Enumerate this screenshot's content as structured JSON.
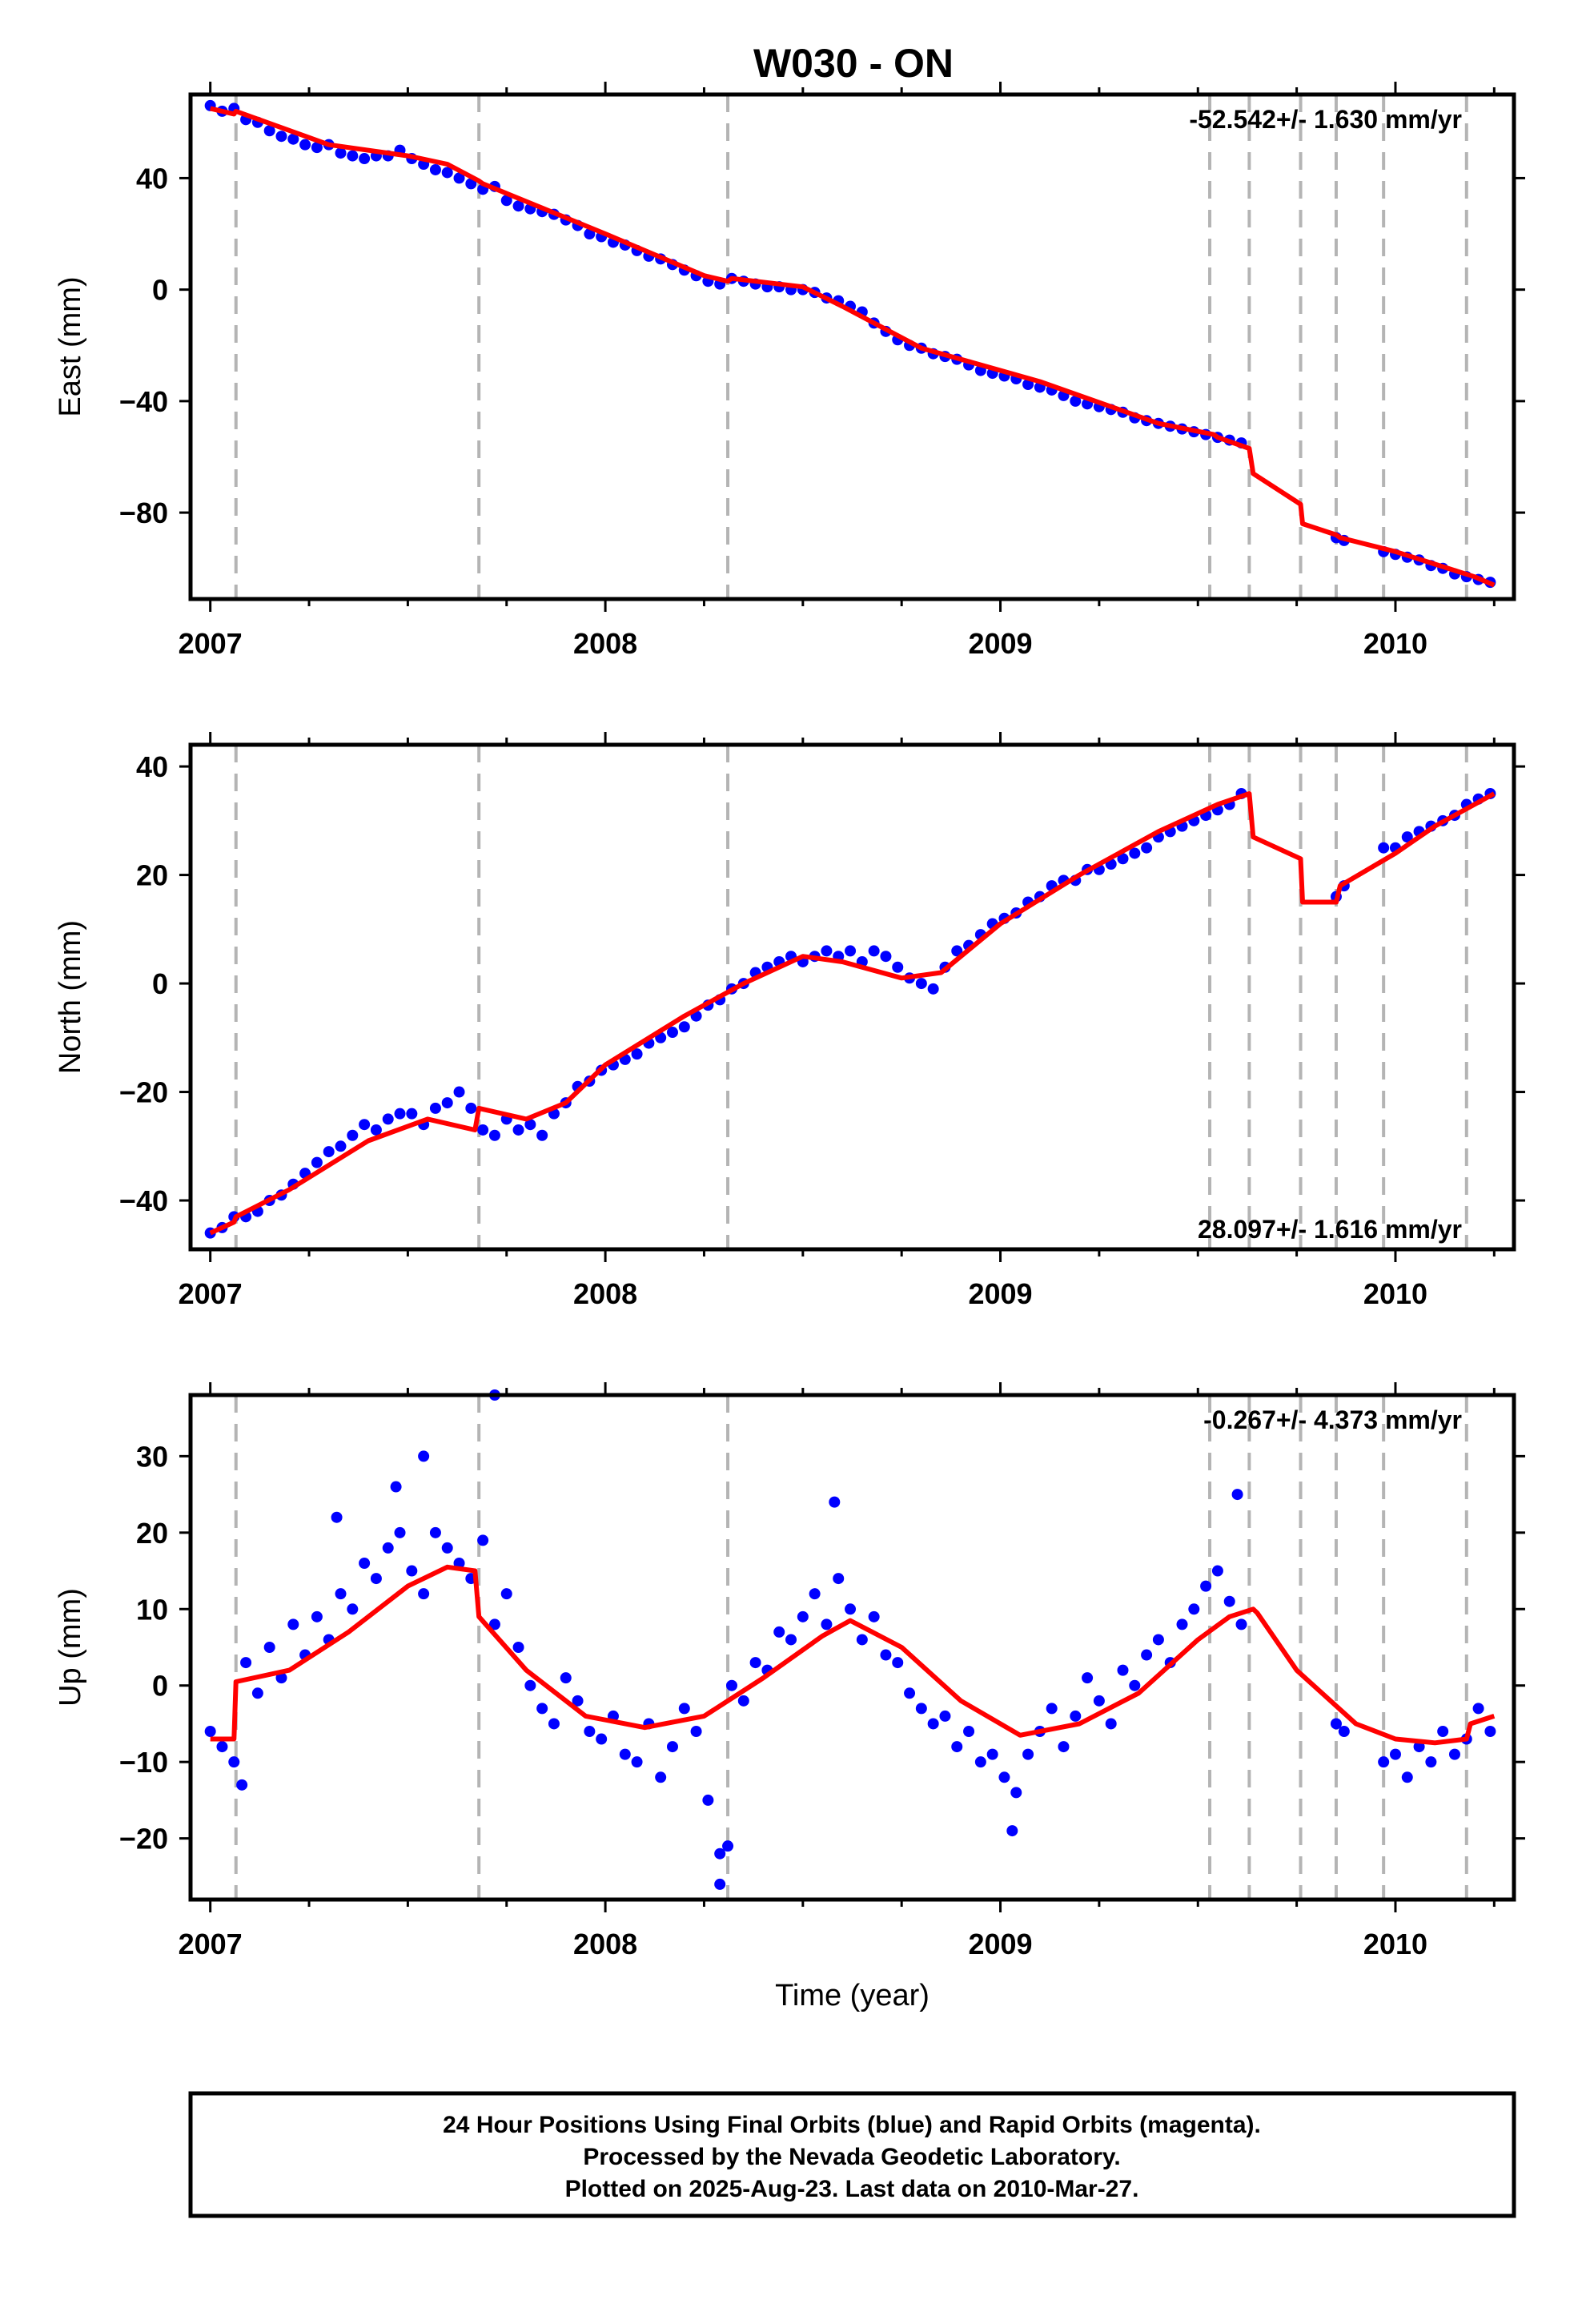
{
  "title": "W030 - ON",
  "colors": {
    "observations": "#0000ff",
    "model": "#ff0000",
    "event_lines": "#b4b4b4",
    "frame": "#000000"
  },
  "chart_data": [
    {
      "type": "scatter",
      "ylabel": "East (mm)",
      "xlim": [
        2006.95,
        2010.3
      ],
      "ylim": [
        -111,
        70
      ],
      "yticks": [
        40,
        0,
        -40,
        -80
      ],
      "xticks": [
        2007,
        2008,
        2009,
        2010
      ],
      "rate_label": "-52.542+/- 1.630 mm/yr",
      "rate_position": "top-right",
      "model": {
        "x": [
          2007.0,
          2007.06,
          2007.065,
          2007.3,
          2007.5,
          2007.6,
          2007.68,
          2007.69,
          2008.0,
          2008.25,
          2008.31,
          2008.32,
          2008.5,
          2008.6,
          2008.8,
          2009.1,
          2009.4,
          2009.54,
          2009.55,
          2009.63,
          2009.64,
          2009.76,
          2009.765,
          2009.85,
          2009.86,
          2010.0,
          2010.2,
          2010.25
        ],
        "y": [
          65,
          63,
          64,
          52,
          48,
          45,
          39,
          38,
          20,
          5,
          3,
          4,
          1,
          -6,
          -21,
          -33,
          -48,
          -52,
          -53,
          -57,
          -66,
          -77,
          -84,
          -88,
          -89,
          -94,
          -103,
          -106
        ]
      },
      "observations": {
        "x": [
          2007.0,
          2007.03,
          2007.06,
          2007.09,
          2007.12,
          2007.15,
          2007.18,
          2007.21,
          2007.24,
          2007.27,
          2007.3,
          2007.33,
          2007.36,
          2007.39,
          2007.42,
          2007.45,
          2007.48,
          2007.51,
          2007.54,
          2007.57,
          2007.6,
          2007.63,
          2007.66,
          2007.69,
          2007.72,
          2007.75,
          2007.78,
          2007.81,
          2007.84,
          2007.87,
          2007.9,
          2007.93,
          2007.96,
          2007.99,
          2008.02,
          2008.05,
          2008.08,
          2008.11,
          2008.14,
          2008.17,
          2008.2,
          2008.23,
          2008.26,
          2008.29,
          2008.32,
          2008.35,
          2008.38,
          2008.41,
          2008.44,
          2008.47,
          2008.5,
          2008.53,
          2008.56,
          2008.59,
          2008.62,
          2008.65,
          2008.68,
          2008.71,
          2008.74,
          2008.77,
          2008.8,
          2008.83,
          2008.86,
          2008.89,
          2008.92,
          2008.95,
          2008.98,
          2009.01,
          2009.04,
          2009.07,
          2009.1,
          2009.13,
          2009.16,
          2009.19,
          2009.22,
          2009.25,
          2009.28,
          2009.31,
          2009.34,
          2009.37,
          2009.4,
          2009.43,
          2009.46,
          2009.49,
          2009.52,
          2009.55,
          2009.58,
          2009.61,
          2009.85,
          2009.87,
          2009.97,
          2010.0,
          2010.03,
          2010.06,
          2010.09,
          2010.12,
          2010.15,
          2010.18,
          2010.21,
          2010.24
        ],
        "y": [
          66,
          64,
          65,
          61,
          60,
          57,
          55,
          54,
          52,
          51,
          52,
          49,
          48,
          47,
          48,
          48,
          50,
          47,
          45,
          43,
          42,
          40,
          38,
          36,
          37,
          32,
          30,
          29,
          28,
          27,
          25,
          23,
          20,
          19,
          17,
          16,
          14,
          12,
          11,
          9,
          7,
          5,
          3,
          2,
          4,
          3,
          2,
          1,
          1,
          0,
          0,
          -1,
          -3,
          -4,
          -6,
          -8,
          -12,
          -15,
          -18,
          -20,
          -21,
          -23,
          -24,
          -25,
          -27,
          -29,
          -30,
          -31,
          -32,
          -34,
          -35,
          -36,
          -38,
          -40,
          -41,
          -42,
          -43,
          -44,
          -46,
          -47,
          -48,
          -49,
          -50,
          -51,
          -52,
          -53,
          -54,
          -55,
          -89,
          -90,
          -94,
          -95,
          -96,
          -97,
          -99,
          -100,
          -102,
          -103,
          -104,
          -105
        ]
      }
    },
    {
      "type": "scatter",
      "ylabel": "North (mm)",
      "xlim": [
        2006.95,
        2010.3
      ],
      "ylim": [
        -49,
        44
      ],
      "yticks": [
        40,
        20,
        0,
        -20,
        -40
      ],
      "xticks": [
        2007,
        2008,
        2009,
        2010
      ],
      "rate_label": "28.097+/- 1.616 mm/yr",
      "rate_position": "bottom-right",
      "model": {
        "x": [
          2007.0,
          2007.06,
          2007.065,
          2007.2,
          2007.4,
          2007.55,
          2007.67,
          2007.68,
          2007.8,
          2007.9,
          2008.0,
          2008.2,
          2008.35,
          2008.5,
          2008.6,
          2008.75,
          2008.85,
          2009.0,
          2009.2,
          2009.4,
          2009.55,
          2009.63,
          2009.64,
          2009.76,
          2009.765,
          2009.85,
          2009.86,
          2010.0,
          2010.1,
          2010.25
        ],
        "y": [
          -46,
          -44,
          -43,
          -38,
          -29,
          -25,
          -27,
          -23,
          -25,
          -22,
          -15,
          -6,
          0,
          5,
          4,
          1,
          2,
          11,
          20,
          28,
          33,
          35,
          27,
          23,
          15,
          15,
          18,
          24,
          29,
          35
        ]
      },
      "observations": {
        "x": [
          2007.0,
          2007.03,
          2007.06,
          2007.09,
          2007.12,
          2007.15,
          2007.18,
          2007.21,
          2007.24,
          2007.27,
          2007.3,
          2007.33,
          2007.36,
          2007.39,
          2007.42,
          2007.45,
          2007.48,
          2007.51,
          2007.54,
          2007.57,
          2007.6,
          2007.63,
          2007.66,
          2007.69,
          2007.72,
          2007.75,
          2007.78,
          2007.81,
          2007.84,
          2007.87,
          2007.9,
          2007.93,
          2007.96,
          2007.99,
          2008.02,
          2008.05,
          2008.08,
          2008.11,
          2008.14,
          2008.17,
          2008.2,
          2008.23,
          2008.26,
          2008.29,
          2008.32,
          2008.35,
          2008.38,
          2008.41,
          2008.44,
          2008.47,
          2008.5,
          2008.53,
          2008.56,
          2008.59,
          2008.62,
          2008.65,
          2008.68,
          2008.71,
          2008.74,
          2008.77,
          2008.8,
          2008.83,
          2008.86,
          2008.89,
          2008.92,
          2008.95,
          2008.98,
          2009.01,
          2009.04,
          2009.07,
          2009.1,
          2009.13,
          2009.16,
          2009.19,
          2009.22,
          2009.25,
          2009.28,
          2009.31,
          2009.34,
          2009.37,
          2009.4,
          2009.43,
          2009.46,
          2009.49,
          2009.52,
          2009.55,
          2009.58,
          2009.61,
          2009.85,
          2009.87,
          2009.97,
          2010.0,
          2010.03,
          2010.06,
          2010.09,
          2010.12,
          2010.15,
          2010.18,
          2010.21,
          2010.24
        ],
        "y": [
          -46,
          -45,
          -43,
          -43,
          -42,
          -40,
          -39,
          -37,
          -35,
          -33,
          -31,
          -30,
          -28,
          -26,
          -27,
          -25,
          -24,
          -24,
          -26,
          -23,
          -22,
          -20,
          -23,
          -27,
          -28,
          -25,
          -27,
          -26,
          -28,
          -24,
          -22,
          -19,
          -18,
          -16,
          -15,
          -14,
          -13,
          -11,
          -10,
          -9,
          -8,
          -6,
          -4,
          -3,
          -1,
          0,
          2,
          3,
          4,
          5,
          4,
          5,
          6,
          5,
          6,
          4,
          6,
          5,
          3,
          1,
          0,
          -1,
          3,
          6,
          7,
          9,
          11,
          12,
          13,
          15,
          16,
          18,
          19,
          19,
          21,
          21,
          22,
          23,
          24,
          25,
          27,
          28,
          29,
          30,
          31,
          32,
          33,
          35,
          16,
          18,
          25,
          25,
          27,
          28,
          29,
          30,
          31,
          33,
          34,
          35
        ]
      }
    },
    {
      "type": "scatter",
      "ylabel": "Up (mm)",
      "xlabel": "Time (year)",
      "xlim": [
        2006.95,
        2010.3
      ],
      "ylim": [
        -28,
        38
      ],
      "yticks": [
        30,
        20,
        10,
        0,
        -10,
        -20
      ],
      "xticks": [
        2007,
        2008,
        2009,
        2010
      ],
      "rate_label": "-0.267+/- 4.373 mm/yr",
      "rate_position": "top-right",
      "model": {
        "x": [
          2007.0,
          2007.06,
          2007.065,
          2007.2,
          2007.35,
          2007.5,
          2007.6,
          2007.67,
          2007.68,
          2007.8,
          2007.95,
          2008.1,
          2008.25,
          2008.4,
          2008.55,
          2008.62,
          2008.75,
          2008.9,
          2009.05,
          2009.2,
          2009.35,
          2009.5,
          2009.58,
          2009.64,
          2009.65,
          2009.75,
          2009.9,
          2010.0,
          2010.1,
          2010.18,
          2010.19,
          2010.25
        ],
        "y": [
          -7,
          -7,
          0.5,
          2,
          7,
          13,
          15.5,
          15,
          9,
          2,
          -4,
          -5.5,
          -4,
          1,
          6.5,
          8.5,
          5,
          -2,
          -6.5,
          -5,
          -1,
          6,
          9,
          10,
          9.5,
          2,
          -5,
          -7,
          -7.5,
          -7,
          -5,
          -4
        ]
      },
      "observations": {
        "x": [
          2007.0,
          2007.03,
          2007.06,
          2007.09,
          2007.12,
          2007.15,
          2007.18,
          2007.21,
          2007.24,
          2007.27,
          2007.3,
          2007.33,
          2007.36,
          2007.39,
          2007.42,
          2007.45,
          2007.48,
          2007.51,
          2007.54,
          2007.57,
          2007.6,
          2007.63,
          2007.66,
          2007.69,
          2007.72,
          2007.75,
          2007.78,
          2007.81,
          2007.84,
          2007.87,
          2007.9,
          2007.93,
          2007.96,
          2007.99,
          2008.02,
          2008.05,
          2008.08,
          2008.11,
          2008.14,
          2008.17,
          2008.2,
          2008.23,
          2008.26,
          2008.29,
          2008.32,
          2008.35,
          2008.38,
          2008.41,
          2008.44,
          2008.47,
          2008.5,
          2008.53,
          2008.56,
          2008.59,
          2008.62,
          2008.65,
          2008.68,
          2008.71,
          2008.74,
          2008.77,
          2008.8,
          2008.83,
          2008.86,
          2008.89,
          2008.92,
          2008.95,
          2008.98,
          2009.01,
          2009.04,
          2009.07,
          2009.1,
          2009.13,
          2009.16,
          2009.19,
          2009.22,
          2009.25,
          2009.28,
          2009.31,
          2009.34,
          2009.37,
          2009.4,
          2009.43,
          2009.46,
          2009.49,
          2009.52,
          2009.55,
          2009.58,
          2009.61,
          2009.85,
          2009.87,
          2009.97,
          2010.0,
          2010.03,
          2010.06,
          2010.09,
          2010.12,
          2010.15,
          2010.18,
          2010.21,
          2010.24,
          2007.32,
          2007.47,
          2007.54,
          2007.72,
          2008.29,
          2008.31,
          2008.58,
          2009.03,
          2009.6,
          2007.08
        ],
        "y": [
          -6,
          -8,
          -10,
          3,
          -1,
          5,
          1,
          8,
          4,
          9,
          6,
          12,
          10,
          16,
          14,
          18,
          20,
          15,
          12,
          20,
          18,
          16,
          14,
          19,
          8,
          12,
          5,
          0,
          -3,
          -5,
          1,
          -2,
          -6,
          -7,
          -4,
          -9,
          -10,
          -5,
          -12,
          -8,
          -3,
          -6,
          -15,
          -22,
          0,
          -2,
          3,
          2,
          7,
          6,
          9,
          12,
          8,
          14,
          10,
          6,
          9,
          4,
          3,
          -1,
          -3,
          -5,
          -4,
          -8,
          -6,
          -10,
          -9,
          -12,
          -14,
          -9,
          -6,
          -3,
          -8,
          -4,
          1,
          -2,
          -5,
          2,
          0,
          4,
          6,
          3,
          8,
          10,
          13,
          15,
          11,
          8,
          -5,
          -6,
          -10,
          -9,
          -12,
          -8,
          -10,
          -6,
          -9,
          -7,
          -3,
          -6,
          22,
          26,
          30,
          38,
          -26,
          -21,
          24,
          -19,
          25,
          -13
        ]
      }
    }
  ],
  "event_lines_years": [
    2007.065,
    2007.68,
    2008.31,
    2009.53,
    2009.63,
    2009.76,
    2009.85,
    2009.97,
    2010.18
  ],
  "footer": {
    "line1": "24 Hour Positions Using Final Orbits (blue) and Rapid Orbits (magenta).",
    "line2": "Processed by the Nevada Geodetic Laboratory.",
    "line3": "Plotted on 2025-Aug-23. Last data on 2010-Mar-27."
  }
}
